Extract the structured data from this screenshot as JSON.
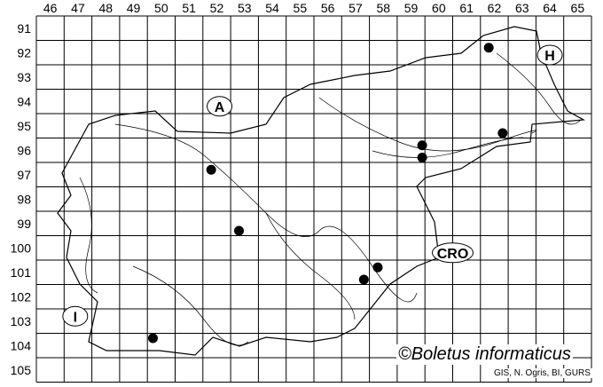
{
  "map": {
    "grid_columns": [
      "46",
      "47",
      "48",
      "49",
      "50",
      "51",
      "52",
      "53",
      "54",
      "55",
      "56",
      "57",
      "58",
      "59",
      "60",
      "61",
      "62",
      "63",
      "64",
      "65"
    ],
    "grid_rows": [
      "91",
      "92",
      "93",
      "94",
      "95",
      "96",
      "97",
      "98",
      "99",
      "100",
      "101",
      "102",
      "103",
      "104",
      "105"
    ],
    "country_labels": [
      {
        "text": "A",
        "col": 52.6,
        "row": 94.7
      },
      {
        "text": "H",
        "col": 64.5,
        "row": 92.6
      },
      {
        "text": "CRO",
        "col": 61.0,
        "row": 100.7
      },
      {
        "text": "I",
        "col": 47.4,
        "row": 103.3
      }
    ],
    "records": [
      {
        "col": 62.3,
        "row": 92.3
      },
      {
        "col": 62.8,
        "row": 95.8
      },
      {
        "col": 59.9,
        "row": 96.3
      },
      {
        "col": 59.9,
        "row": 96.8
      },
      {
        "col": 52.3,
        "row": 97.3
      },
      {
        "col": 53.3,
        "row": 99.8
      },
      {
        "col": 58.3,
        "row": 101.3
      },
      {
        "col": 57.8,
        "row": 101.8
      },
      {
        "col": 50.2,
        "row": 104.2
      }
    ],
    "marker_color": "#000000"
  },
  "credit": "©Boletus informaticus",
  "source": "GIS, N. Ogris, BI, GURS"
}
